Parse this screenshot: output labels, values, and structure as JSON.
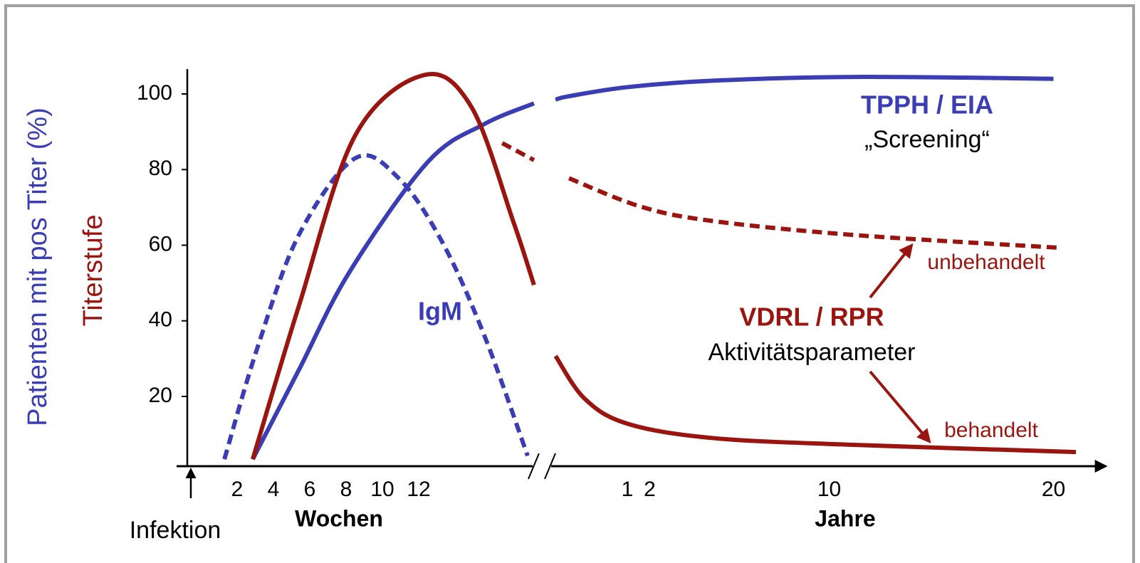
{
  "chart_data": {
    "type": "line",
    "y_label": "Patienten mit pos Titer (%)",
    "y2_label": "Titerstufe",
    "ylim": [
      0,
      107
    ],
    "yticks": [
      20,
      40,
      60,
      80,
      100
    ],
    "panels": [
      {
        "x_label": "Wochen",
        "xlim": [
          -0.6,
          18.5
        ],
        "xticks": [
          2,
          4,
          6,
          8,
          10,
          12
        ]
      },
      {
        "x_label": "Jahre",
        "xlim": [
          -2.5,
          22
        ],
        "xticks": [
          1,
          2,
          10,
          20
        ]
      }
    ],
    "series": [
      {
        "name": "TPPH / EIA",
        "color": "#3a3db4",
        "dashed": false,
        "panels": [
          {
            "x": [
              2.86,
              5.4,
              8.2,
              12.5,
              15.6,
              18.35
            ],
            "values": [
              3.4,
              27,
              53,
              82,
              92,
              97.5
            ]
          },
          {
            "x": [
              -2.2,
              -1.6,
              1,
              4.8,
              11.1,
              20
            ],
            "values": [
              98.5,
              99.4,
              101.8,
              103.5,
              104.5,
              104
            ]
          }
        ]
      },
      {
        "name": "IgM",
        "color": "#3a3db4",
        "dashed": true,
        "panels": [
          {
            "x": [
              1.3,
              3.1,
              5.4,
              8.5,
              10.9,
              13.3,
              15.6,
              18
            ],
            "values": [
              3.4,
              32.6,
              62.7,
              83,
              77.7,
              60.8,
              36.3,
              4.3
            ]
          }
        ]
      },
      {
        "name": "behandelt",
        "color": "#9b1510",
        "dashed": false,
        "panels": [
          {
            "x": [
              2.86,
              5.4,
              8.5,
              12.3,
              14.9,
              17.2,
              18.35
            ],
            "values": [
              3.4,
              43.9,
              89,
              105,
              96.6,
              66.4,
              49.5
            ]
          },
          {
            "x": [
              -2.2,
              -0.9,
              1,
              4.8,
              11.1,
              21
            ],
            "values": [
              30.7,
              19.4,
              12.8,
              9,
              7.2,
              5.3
            ]
          }
        ]
      },
      {
        "name": "unbehandelt",
        "color": "#9b1510",
        "dashed": true,
        "panels": [
          {
            "x": [
              16.6,
              18.35
            ],
            "values": [
              87,
              82.5
            ]
          },
          {
            "x": [
              -1.6,
              1.6,
              4.8,
              11.1,
              20.3
            ],
            "values": [
              77.7,
              70.2,
              66.4,
              62.7,
              59.3
            ]
          }
        ]
      }
    ],
    "annotations": {
      "tpph_note": "„Screening“",
      "vdrl_title": "VDRL / RPR",
      "vdrl_note": "Aktivitätsparameter",
      "infection": "Infektion"
    }
  }
}
